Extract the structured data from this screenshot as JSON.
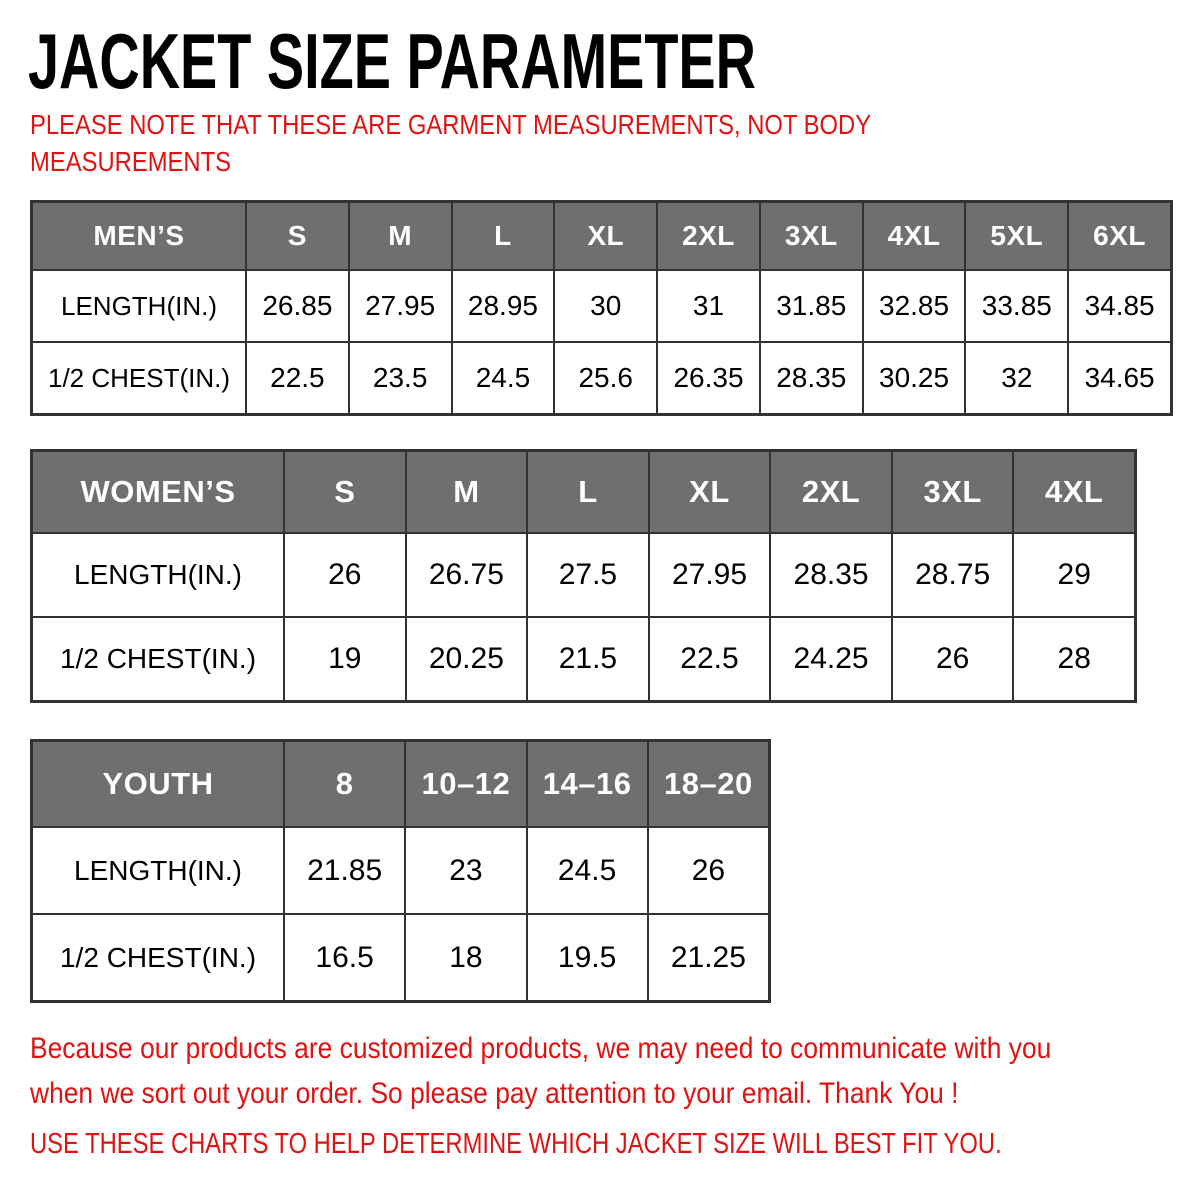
{
  "title": "JACKET SIZE PARAMETER",
  "note_lines": [
    "PLEASE NOTE THAT THESE ARE GARMENT MEASUREMENTS, NOT BODY",
    "MEASUREMENTS"
  ],
  "colors": {
    "accent_red": "#e01212",
    "header_gray": "#6f6f6f",
    "grid_line": "#333333",
    "header_text": "#ffffff",
    "body_text": "#000000"
  },
  "tables": [
    {
      "name": "MEN’S",
      "sizes": [
        "S",
        "M",
        "L",
        "XL",
        "2XL",
        "3XL",
        "4XL",
        "5XL",
        "6XL"
      ],
      "rows": [
        {
          "label": "LENGTH(IN.)",
          "values": [
            "26.85",
            "27.95",
            "28.95",
            "30",
            "31",
            "31.85",
            "32.85",
            "33.85",
            "34.85"
          ]
        },
        {
          "label": "1/2 CHEST(IN.)",
          "values": [
            "22.5",
            "23.5",
            "24.5",
            "25.6",
            "26.35",
            "28.35",
            "30.25",
            "32",
            "34.65"
          ]
        }
      ]
    },
    {
      "name": "WOMEN’S",
      "sizes": [
        "S",
        "M",
        "L",
        "XL",
        "2XL",
        "3XL",
        "4XL"
      ],
      "rows": [
        {
          "label": "LENGTH(IN.)",
          "values": [
            "26",
            "26.75",
            "27.5",
            "27.95",
            "28.35",
            "28.75",
            "29"
          ]
        },
        {
          "label": "1/2 CHEST(IN.)",
          "values": [
            "19",
            "20.25",
            "21.5",
            "22.5",
            "24.25",
            "26",
            "28"
          ]
        }
      ]
    },
    {
      "name": "YOUTH",
      "sizes": [
        "8",
        "10–12",
        "14–16",
        "18–20"
      ],
      "rows": [
        {
          "label": "LENGTH(IN.)",
          "values": [
            "21.85",
            "23",
            "24.5",
            "26"
          ]
        },
        {
          "label": "1/2 CHEST(IN.)",
          "values": [
            "16.5",
            "18",
            "19.5",
            "21.25"
          ]
        }
      ]
    }
  ],
  "footer": {
    "paragraph_lines": [
      "Because our products are customized products, we may need to communicate with you",
      "when we sort out your order. So please pay attention to your email. Thank You !"
    ],
    "charts_line": "USE THESE CHARTS TO HELP DETERMINE WHICH JACKET SIZE WILL BEST FIT YOU."
  }
}
